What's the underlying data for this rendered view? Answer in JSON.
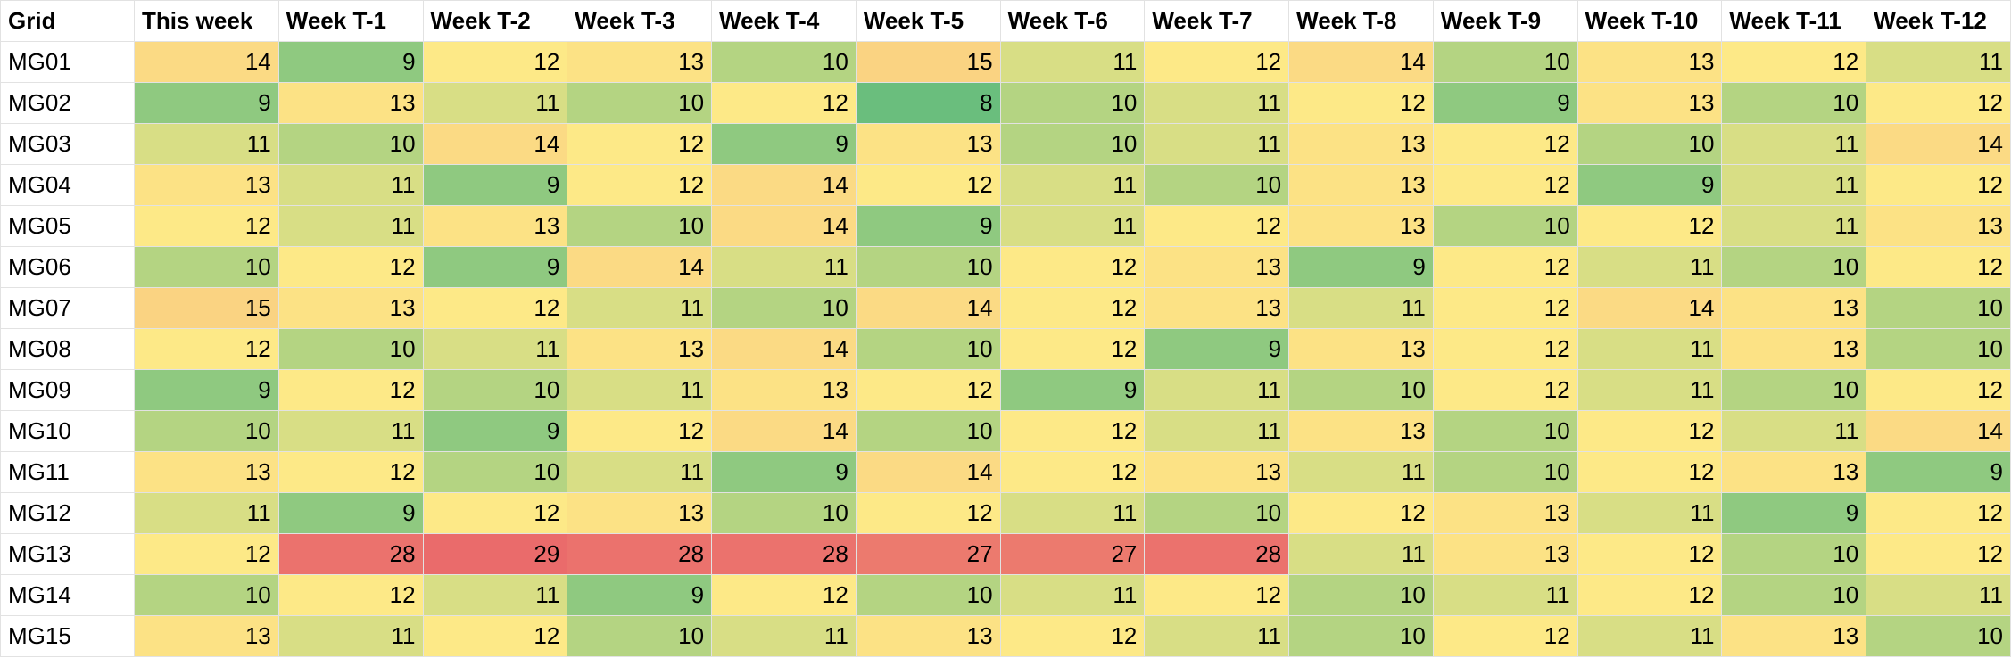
{
  "table": {
    "header": [
      "Grid",
      "This week",
      "Week T-1",
      "Week T-2",
      "Week T-3",
      "Week T-4",
      "Week T-5",
      "Week T-6",
      "Week T-7",
      "Week T-8",
      "Week T-9",
      "Week T-10",
      "Week T-11",
      "Week T-12"
    ],
    "color_scale": {
      "min_color": "#6abe7d",
      "mid_color": "#fde987",
      "max_color": "#ea6b6b"
    },
    "rows": [
      [
        "MG01",
        14,
        9,
        12,
        13,
        10,
        15,
        11,
        12,
        14,
        10,
        13,
        12,
        11
      ],
      [
        "MG02",
        9,
        13,
        11,
        10,
        12,
        8,
        10,
        11,
        12,
        9,
        13,
        10,
        12
      ],
      [
        "MG03",
        11,
        10,
        14,
        12,
        9,
        13,
        10,
        11,
        13,
        12,
        10,
        11,
        14
      ],
      [
        "MG04",
        13,
        11,
        9,
        12,
        14,
        12,
        11,
        10,
        13,
        12,
        9,
        11,
        12
      ],
      [
        "MG05",
        12,
        11,
        13,
        10,
        14,
        9,
        11,
        12,
        13,
        10,
        12,
        11,
        13
      ],
      [
        "MG06",
        10,
        12,
        9,
        14,
        11,
        10,
        12,
        13,
        9,
        12,
        11,
        10,
        12
      ],
      [
        "MG07",
        15,
        13,
        12,
        11,
        10,
        14,
        12,
        13,
        11,
        12,
        14,
        13,
        10
      ],
      [
        "MG08",
        12,
        10,
        11,
        13,
        14,
        10,
        12,
        9,
        13,
        12,
        11,
        13,
        10
      ],
      [
        "MG09",
        9,
        12,
        10,
        11,
        13,
        12,
        9,
        11,
        10,
        12,
        11,
        10,
        12
      ],
      [
        "MG10",
        10,
        11,
        9,
        12,
        14,
        10,
        12,
        11,
        13,
        10,
        12,
        11,
        14
      ],
      [
        "MG11",
        13,
        12,
        10,
        11,
        9,
        14,
        12,
        13,
        11,
        10,
        12,
        13,
        9
      ],
      [
        "MG12",
        11,
        9,
        12,
        13,
        10,
        12,
        11,
        10,
        12,
        13,
        11,
        9,
        12
      ],
      [
        "MG13",
        12,
        28,
        29,
        28,
        28,
        27,
        27,
        28,
        11,
        13,
        12,
        10,
        12
      ],
      [
        "MG14",
        10,
        12,
        11,
        9,
        12,
        10,
        11,
        12,
        10,
        11,
        12,
        10,
        11
      ],
      [
        "MG15",
        13,
        11,
        12,
        10,
        11,
        13,
        12,
        11,
        10,
        12,
        11,
        13,
        10
      ]
    ]
  }
}
